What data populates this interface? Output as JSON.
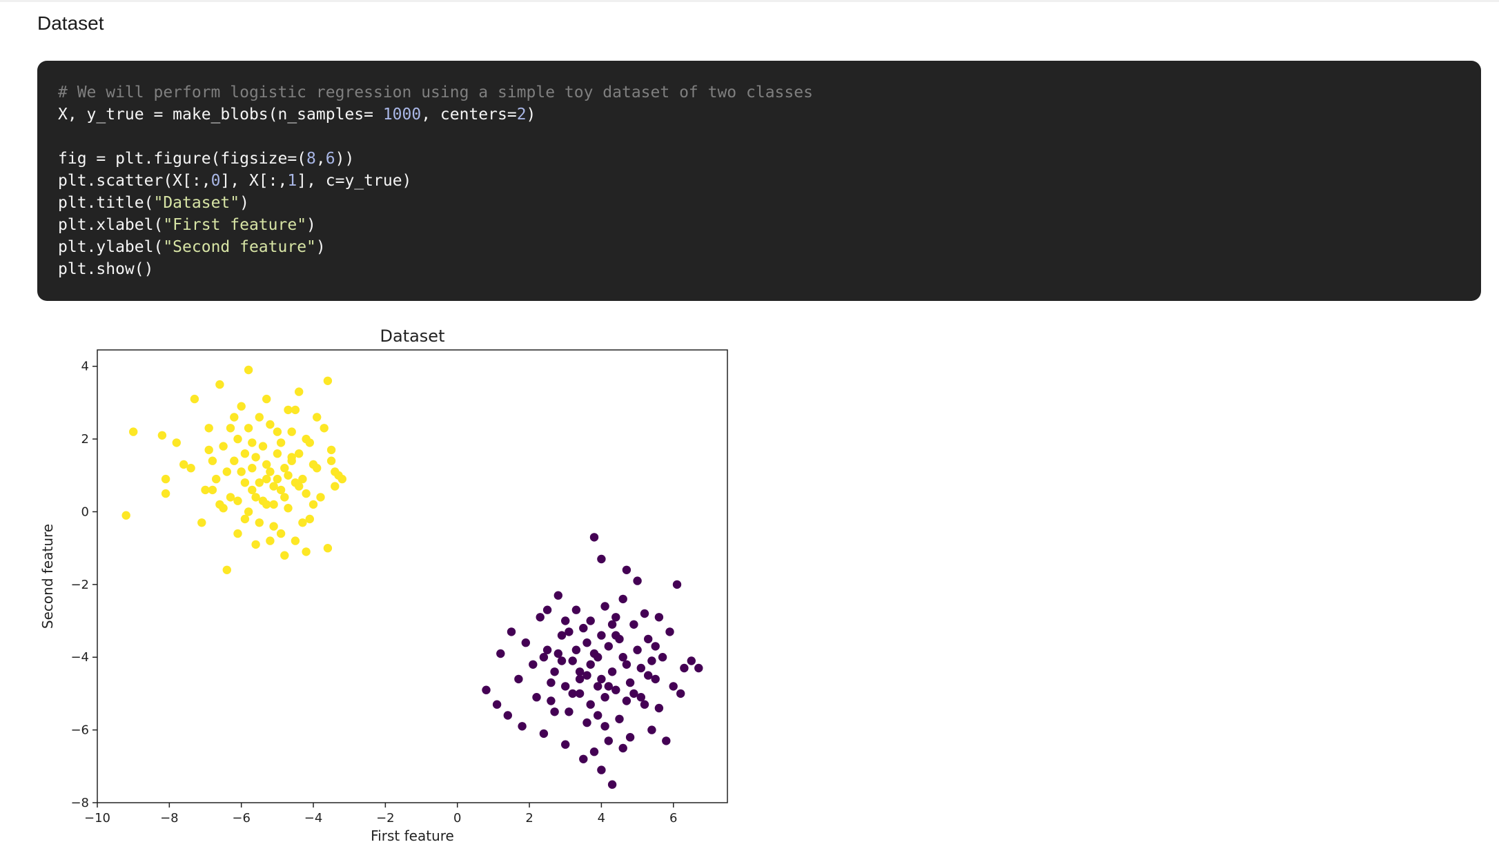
{
  "section_title": "Dataset",
  "code": {
    "lines": [
      [
        {
          "t": "# We will perform logistic regression using a simple toy dataset of two classes",
          "k": "comment"
        }
      ],
      [
        {
          "t": "X, y_true = make_blobs(n_samples= ",
          "k": "plain"
        },
        {
          "t": "1000",
          "k": "num"
        },
        {
          "t": ", centers=",
          "k": "plain"
        },
        {
          "t": "2",
          "k": "num"
        },
        {
          "t": ")",
          "k": "plain"
        }
      ],
      [],
      [
        {
          "t": "fig = plt.figure(figsize=(",
          "k": "plain"
        },
        {
          "t": "8",
          "k": "num"
        },
        {
          "t": ",",
          "k": "plain"
        },
        {
          "t": "6",
          "k": "num"
        },
        {
          "t": "))",
          "k": "plain"
        }
      ],
      [
        {
          "t": "plt.scatter(X[:,",
          "k": "plain"
        },
        {
          "t": "0",
          "k": "num"
        },
        {
          "t": "], X[:,",
          "k": "plain"
        },
        {
          "t": "1",
          "k": "num"
        },
        {
          "t": "], c=y_true)",
          "k": "plain"
        }
      ],
      [
        {
          "t": "plt.title(",
          "k": "plain"
        },
        {
          "t": "\"Dataset\"",
          "k": "str"
        },
        {
          "t": ")",
          "k": "plain"
        }
      ],
      [
        {
          "t": "plt.xlabel(",
          "k": "plain"
        },
        {
          "t": "\"First feature\"",
          "k": "str"
        },
        {
          "t": ")",
          "k": "plain"
        }
      ],
      [
        {
          "t": "plt.ylabel(",
          "k": "plain"
        },
        {
          "t": "\"Second feature\"",
          "k": "str"
        },
        {
          "t": ")",
          "k": "plain"
        }
      ],
      [
        {
          "t": "plt.show()",
          "k": "plain"
        }
      ]
    ]
  },
  "chart_data": {
    "type": "scatter",
    "title": "Dataset",
    "xlabel": "First feature",
    "ylabel": "Second feature",
    "xlim": [
      -10,
      7.5
    ],
    "ylim": [
      -8,
      4.45
    ],
    "xticks": [
      -10,
      -8,
      -6,
      -4,
      -2,
      0,
      2,
      4,
      6
    ],
    "yticks": [
      -8,
      -6,
      -4,
      -2,
      0,
      2,
      4
    ],
    "xtick_labels": [
      "−10",
      "−8",
      "−6",
      "−4",
      "−2",
      "0",
      "2",
      "4",
      "6"
    ],
    "ytick_labels": [
      "−8",
      "−6",
      "−4",
      "−2",
      "0",
      "2",
      "4"
    ],
    "grid": false,
    "series": [
      {
        "color": "#fde725",
        "points": [
          [
            -9.2,
            -0.1
          ],
          [
            -9.0,
            2.2
          ],
          [
            -8.2,
            2.1
          ],
          [
            -8.1,
            0.9
          ],
          [
            -8.1,
            0.5
          ],
          [
            -7.8,
            1.9
          ],
          [
            -7.6,
            1.3
          ],
          [
            -7.4,
            1.2
          ],
          [
            -7.3,
            3.1
          ],
          [
            -7.1,
            -0.3
          ],
          [
            -6.9,
            1.7
          ],
          [
            -6.8,
            0.6
          ],
          [
            -6.6,
            3.5
          ],
          [
            -6.5,
            0.1
          ],
          [
            -6.4,
            -1.6
          ],
          [
            -6.3,
            2.3
          ],
          [
            -6.2,
            1.4
          ],
          [
            -6.1,
            -0.6
          ],
          [
            -6.0,
            2.9
          ],
          [
            -5.9,
            0.8
          ],
          [
            -5.8,
            3.9
          ],
          [
            -5.7,
            1.9
          ],
          [
            -5.6,
            -0.9
          ],
          [
            -5.5,
            2.6
          ],
          [
            -5.4,
            0.3
          ],
          [
            -5.3,
            3.1
          ],
          [
            -5.2,
            1.1
          ],
          [
            -5.1,
            -0.4
          ],
          [
            -5.0,
            2.2
          ],
          [
            -4.9,
            0.6
          ],
          [
            -4.8,
            -1.2
          ],
          [
            -4.7,
            2.8
          ],
          [
            -4.6,
            1.5
          ],
          [
            -4.5,
            -0.8
          ],
          [
            -4.4,
            3.3
          ],
          [
            -4.3,
            0.9
          ],
          [
            -4.2,
            2.0
          ],
          [
            -4.1,
            -0.2
          ],
          [
            -4.0,
            1.3
          ],
          [
            -3.9,
            2.6
          ],
          [
            -3.8,
            0.4
          ],
          [
            -3.7,
            2.3
          ],
          [
            -3.6,
            -1.0
          ],
          [
            -3.5,
            1.7
          ],
          [
            -3.4,
            0.7
          ],
          [
            -3.3,
            1.0
          ],
          [
            -3.2,
            0.9
          ],
          [
            -3.4,
            1.1
          ],
          [
            -3.5,
            1.4
          ],
          [
            -3.6,
            3.6
          ],
          [
            -6.7,
            0.9
          ],
          [
            -6.5,
            1.8
          ],
          [
            -6.3,
            0.4
          ],
          [
            -6.2,
            2.6
          ],
          [
            -6.0,
            1.1
          ],
          [
            -5.9,
            -0.2
          ],
          [
            -5.8,
            2.3
          ],
          [
            -5.7,
            0.6
          ],
          [
            -5.6,
            1.5
          ],
          [
            -5.5,
            -0.3
          ],
          [
            -5.4,
            1.8
          ],
          [
            -5.3,
            0.9
          ],
          [
            -5.2,
            2.4
          ],
          [
            -5.1,
            0.2
          ],
          [
            -5.0,
            1.6
          ],
          [
            -4.9,
            -0.6
          ],
          [
            -4.8,
            1.2
          ],
          [
            -4.7,
            0.1
          ],
          [
            -4.6,
            2.2
          ],
          [
            -4.5,
            0.8
          ],
          [
            -4.4,
            1.6
          ],
          [
            -4.3,
            -0.3
          ],
          [
            -4.2,
            0.5
          ],
          [
            -4.1,
            1.9
          ],
          [
            -4.0,
            0.2
          ],
          [
            -5.6,
            0.4
          ],
          [
            -5.3,
            1.3
          ],
          [
            -5.1,
            0.7
          ],
          [
            -4.9,
            1.9
          ],
          [
            -4.7,
            1.0
          ],
          [
            -6.4,
            1.1
          ],
          [
            -6.1,
            0.3
          ],
          [
            -5.9,
            1.6
          ],
          [
            -5.7,
            1.2
          ],
          [
            -5.5,
            0.8
          ],
          [
            -5.3,
            0.2
          ],
          [
            -5.0,
            0.9
          ],
          [
            -4.8,
            0.4
          ],
          [
            -4.6,
            1.4
          ],
          [
            -4.4,
            0.7
          ],
          [
            -6.6,
            0.2
          ],
          [
            -6.8,
            1.4
          ],
          [
            -7.0,
            0.6
          ],
          [
            -6.9,
            2.3
          ],
          [
            -6.1,
            2.0
          ],
          [
            -5.8,
            0.0
          ],
          [
            -5.2,
            -0.8
          ],
          [
            -4.5,
            2.8
          ],
          [
            -4.2,
            -1.1
          ],
          [
            -3.9,
            1.2
          ]
        ]
      },
      {
        "color": "#440154",
        "points": [
          [
            0.8,
            -4.9
          ],
          [
            1.1,
            -5.3
          ],
          [
            1.2,
            -3.9
          ],
          [
            1.4,
            -5.6
          ],
          [
            1.5,
            -3.3
          ],
          [
            1.7,
            -4.6
          ],
          [
            1.8,
            -5.9
          ],
          [
            1.9,
            -3.6
          ],
          [
            2.1,
            -4.2
          ],
          [
            2.2,
            -5.1
          ],
          [
            2.3,
            -2.9
          ],
          [
            2.4,
            -6.1
          ],
          [
            2.5,
            -3.8
          ],
          [
            2.6,
            -4.7
          ],
          [
            2.7,
            -5.5
          ],
          [
            2.8,
            -2.3
          ],
          [
            2.9,
            -4.1
          ],
          [
            3.0,
            -6.4
          ],
          [
            3.1,
            -3.3
          ],
          [
            3.2,
            -5.0
          ],
          [
            3.3,
            -2.7
          ],
          [
            3.4,
            -4.4
          ],
          [
            3.5,
            -6.8
          ],
          [
            3.6,
            -3.6
          ],
          [
            3.7,
            -5.3
          ],
          [
            3.8,
            -0.7
          ],
          [
            3.9,
            -4.0
          ],
          [
            4.0,
            -7.1
          ],
          [
            4.1,
            -2.6
          ],
          [
            4.2,
            -4.8
          ],
          [
            4.3,
            -7.5
          ],
          [
            4.4,
            -3.4
          ],
          [
            4.5,
            -5.7
          ],
          [
            4.6,
            -2.4
          ],
          [
            4.7,
            -4.2
          ],
          [
            4.8,
            -6.2
          ],
          [
            4.9,
            -3.1
          ],
          [
            5.0,
            -1.9
          ],
          [
            5.1,
            -5.1
          ],
          [
            5.2,
            -2.8
          ],
          [
            5.3,
            -4.5
          ],
          [
            5.4,
            -6.0
          ],
          [
            5.5,
            -3.7
          ],
          [
            5.6,
            -5.4
          ],
          [
            5.7,
            -4.0
          ],
          [
            5.8,
            -6.3
          ],
          [
            5.9,
            -3.3
          ],
          [
            6.0,
            -4.8
          ],
          [
            6.1,
            -2.0
          ],
          [
            6.3,
            -4.3
          ],
          [
            6.5,
            -4.1
          ],
          [
            6.7,
            -4.3
          ],
          [
            6.2,
            -5.0
          ],
          [
            4.0,
            -1.3
          ],
          [
            4.7,
            -1.6
          ],
          [
            3.6,
            -4.5
          ],
          [
            3.8,
            -3.9
          ],
          [
            4.0,
            -4.6
          ],
          [
            4.2,
            -3.7
          ],
          [
            4.4,
            -4.9
          ],
          [
            3.4,
            -5.0
          ],
          [
            3.2,
            -4.1
          ],
          [
            3.0,
            -4.8
          ],
          [
            2.8,
            -3.9
          ],
          [
            2.6,
            -5.2
          ],
          [
            4.6,
            -4.0
          ],
          [
            4.8,
            -4.7
          ],
          [
            5.0,
            -3.8
          ],
          [
            5.2,
            -5.3
          ],
          [
            5.4,
            -4.1
          ],
          [
            3.5,
            -3.2
          ],
          [
            3.7,
            -3.0
          ],
          [
            3.9,
            -5.6
          ],
          [
            4.1,
            -5.9
          ],
          [
            4.3,
            -3.1
          ],
          [
            4.5,
            -3.5
          ],
          [
            3.1,
            -5.5
          ],
          [
            2.9,
            -3.4
          ],
          [
            4.9,
            -5.0
          ],
          [
            5.1,
            -4.3
          ],
          [
            3.3,
            -3.8
          ],
          [
            3.6,
            -5.8
          ],
          [
            4.2,
            -6.3
          ],
          [
            4.4,
            -2.9
          ],
          [
            2.7,
            -4.4
          ],
          [
            5.3,
            -3.5
          ],
          [
            3.8,
            -6.6
          ],
          [
            4.6,
            -6.5
          ],
          [
            2.5,
            -2.7
          ],
          [
            5.6,
            -2.9
          ],
          [
            3.0,
            -3.0
          ],
          [
            4.0,
            -3.4
          ],
          [
            4.3,
            -4.4
          ],
          [
            3.7,
            -4.2
          ],
          [
            3.4,
            -4.6
          ],
          [
            4.1,
            -5.1
          ],
          [
            3.9,
            -4.8
          ],
          [
            4.7,
            -5.2
          ],
          [
            2.4,
            -4.0
          ],
          [
            5.5,
            -4.6
          ]
        ]
      }
    ]
  }
}
